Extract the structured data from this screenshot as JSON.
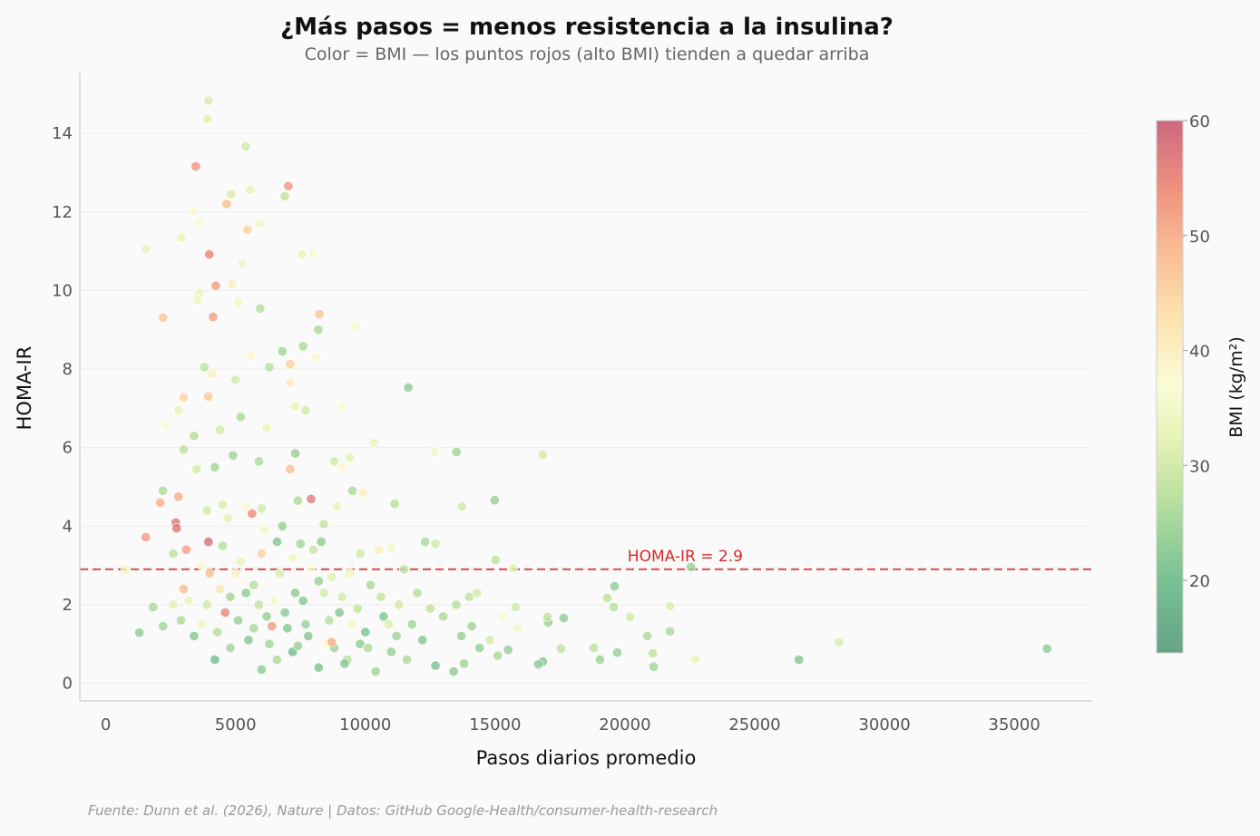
{
  "chart_data": {
    "type": "scatter",
    "title": "¿Más pasos = menos resistencia a la insulina?",
    "subtitle": "Color = BMI — los puntos rojos (alto BMI) tienden a quedar arriba",
    "xlabel": "Pasos diarios promedio",
    "ylabel": "HOMA-IR",
    "xlim": [
      -1000,
      38000
    ],
    "ylim": [
      -0.45,
      15.55
    ],
    "xticks": [
      0,
      5000,
      10000,
      15000,
      20000,
      25000,
      30000,
      35000
    ],
    "yticks": [
      0,
      2,
      4,
      6,
      8,
      10,
      12,
      14
    ],
    "grid": "horizontal",
    "threshold": {
      "value": 2.9,
      "label": "HOMA-IR = 2.9",
      "color": "#d62728"
    },
    "colorbar": {
      "label": "BMI (kg/m²)",
      "range": [
        13.7,
        60
      ],
      "ticks": [
        20,
        30,
        40,
        50,
        60
      ],
      "colormap": "RdYlGn_r",
      "stops": [
        [
          13.7,
          "#5f9f80"
        ],
        [
          20,
          "#70be8e"
        ],
        [
          27,
          "#b5de9a"
        ],
        [
          32,
          "#e3f2b0"
        ],
        [
          37,
          "#fbfcd6"
        ],
        [
          43,
          "#fde0a8"
        ],
        [
          49,
          "#f9b78c"
        ],
        [
          54,
          "#ef8c78"
        ],
        [
          60,
          "#c9617a"
        ]
      ]
    },
    "point_fields": [
      "steps",
      "homa_ir",
      "bmi"
    ],
    "points": [
      [
        3955,
        14.83,
        31
      ],
      [
        3920,
        14.37,
        32
      ],
      [
        5390,
        13.67,
        30
      ],
      [
        3465,
        13.16,
        53
      ],
      [
        7035,
        12.66,
        53
      ],
      [
        5565,
        12.56,
        33
      ],
      [
        4830,
        12.45,
        31
      ],
      [
        6895,
        12.4,
        28
      ],
      [
        3360,
        12.03,
        38
      ],
      [
        4655,
        12.2,
        48
      ],
      [
        5460,
        11.55,
        45
      ],
      [
        1540,
        11.06,
        33
      ],
      [
        3990,
        10.92,
        55
      ],
      [
        7560,
        10.92,
        33
      ],
      [
        7980,
        10.95,
        36
      ],
      [
        2905,
        11.34,
        33
      ],
      [
        5950,
        11.71,
        35
      ],
      [
        4235,
        10.12,
        52
      ],
      [
        4865,
        10.16,
        40
      ],
      [
        3605,
        11.73,
        36
      ],
      [
        2205,
        9.31,
        47
      ],
      [
        4130,
        9.33,
        52
      ],
      [
        8225,
        9.4,
        47
      ],
      [
        8190,
        9.0,
        26
      ],
      [
        9625,
        9.08,
        38
      ],
      [
        5950,
        9.54,
        27
      ],
      [
        3605,
        9.93,
        33
      ],
      [
        3535,
        9.77,
        34
      ],
      [
        5110,
        9.7,
        35
      ],
      [
        5250,
        10.69,
        34
      ],
      [
        11655,
        7.53,
        23
      ],
      [
        7910,
        4.69,
        56
      ],
      [
        2695,
        4.09,
        57
      ],
      [
        2730,
        3.95,
        57
      ],
      [
        1540,
        3.72,
        52
      ],
      [
        5635,
        4.32,
        54
      ],
      [
        3955,
        3.6,
        58
      ],
      [
        26705,
        0.6,
        22
      ],
      [
        36260,
        0.88,
        23
      ],
      [
        28245,
        1.04,
        31
      ],
      [
        22540,
        2.96,
        24
      ],
      [
        22715,
        0.62,
        33
      ],
      [
        21735,
        1.96,
        31
      ],
      [
        21735,
        1.32,
        26
      ],
      [
        20860,
        1.2,
        26
      ],
      [
        21070,
        0.76,
        28
      ],
      [
        21105,
        0.42,
        25
      ],
      [
        20195,
        1.69,
        30
      ],
      [
        19705,
        0.78,
        24
      ],
      [
        19600,
        2.47,
        23
      ],
      [
        19320,
        2.17,
        28
      ],
      [
        19565,
        1.94,
        27
      ],
      [
        18795,
        0.9,
        28
      ],
      [
        19040,
        0.6,
        24
      ],
      [
        17640,
        1.66,
        23
      ],
      [
        17045,
        1.55,
        24
      ],
      [
        17010,
        1.69,
        28
      ],
      [
        17535,
        0.88,
        28
      ],
      [
        16835,
        5.82,
        30
      ],
      [
        16835,
        0.55,
        22
      ],
      [
        16660,
        0.48,
        23
      ],
      [
        14980,
        4.66,
        24
      ],
      [
        15015,
        3.14,
        28
      ],
      [
        15680,
        2.93,
        32
      ],
      [
        15785,
        1.94,
        30
      ],
      [
        15855,
        1.39,
        35
      ],
      [
        13510,
        5.89,
        25
      ],
      [
        12670,
        5.89,
        35
      ],
      [
        13720,
        4.5,
        30
      ],
      [
        10325,
        6.12,
        33
      ],
      [
        11130,
        4.57,
        27
      ],
      [
        770,
        2.89,
        34
      ],
      [
        1295,
        1.29,
        23
      ],
      [
        2205,
        1.45,
        25
      ],
      [
        1820,
        1.94,
        26
      ],
      [
        2100,
        4.6,
        50
      ],
      [
        2200,
        4.9,
        26
      ],
      [
        3000,
        7.28,
        45
      ],
      [
        2800,
        6.95,
        33
      ],
      [
        2300,
        6.55,
        36
      ],
      [
        3800,
        8.05,
        28
      ],
      [
        4100,
        7.88,
        40
      ],
      [
        3950,
        7.3,
        47
      ],
      [
        5000,
        7.73,
        30
      ],
      [
        6300,
        8.05,
        27
      ],
      [
        5600,
        8.35,
        38
      ],
      [
        6800,
        8.45,
        25
      ],
      [
        7100,
        8.12,
        45
      ],
      [
        7600,
        8.58,
        26
      ],
      [
        8100,
        8.3,
        38
      ],
      [
        7100,
        7.65,
        40
      ],
      [
        7300,
        7.05,
        33
      ],
      [
        7700,
        6.95,
        30
      ],
      [
        9100,
        7.05,
        36
      ],
      [
        5200,
        6.78,
        26
      ],
      [
        6200,
        6.5,
        33
      ],
      [
        4400,
        6.45,
        30
      ],
      [
        3400,
        6.3,
        27
      ],
      [
        3000,
        5.95,
        28
      ],
      [
        3500,
        5.45,
        30
      ],
      [
        4200,
        5.5,
        25
      ],
      [
        4900,
        5.8,
        25
      ],
      [
        5900,
        5.65,
        26
      ],
      [
        7300,
        5.85,
        24
      ],
      [
        7100,
        5.45,
        48
      ],
      [
        8800,
        5.65,
        30
      ],
      [
        9400,
        5.75,
        32
      ],
      [
        9100,
        5.5,
        38
      ],
      [
        8900,
        4.5,
        33
      ],
      [
        9500,
        4.9,
        26
      ],
      [
        9900,
        4.85,
        40
      ],
      [
        6800,
        4.0,
        24
      ],
      [
        7400,
        4.65,
        26
      ],
      [
        8400,
        4.05,
        28
      ],
      [
        6000,
        4.45,
        30
      ],
      [
        4700,
        4.2,
        32
      ],
      [
        2600,
        3.3,
        28
      ],
      [
        3100,
        3.4,
        52
      ],
      [
        2800,
        4.75,
        50
      ],
      [
        3900,
        4.4,
        30
      ],
      [
        4500,
        3.5,
        27
      ],
      [
        5200,
        3.1,
        33
      ],
      [
        6000,
        3.3,
        45
      ],
      [
        6600,
        3.6,
        22
      ],
      [
        7500,
        3.55,
        25
      ],
      [
        8300,
        3.6,
        23
      ],
      [
        9800,
        3.3,
        30
      ],
      [
        10500,
        3.4,
        40
      ],
      [
        11000,
        3.45,
        35
      ],
      [
        12300,
        3.6,
        26
      ],
      [
        12700,
        3.55,
        30
      ],
      [
        11500,
        2.9,
        28
      ],
      [
        10200,
        2.5,
        26
      ],
      [
        9100,
        2.2,
        30
      ],
      [
        8200,
        2.6,
        24
      ],
      [
        7300,
        2.3,
        23
      ],
      [
        6500,
        2.1,
        35
      ],
      [
        5700,
        2.5,
        27
      ],
      [
        4800,
        2.2,
        25
      ],
      [
        3900,
        2.0,
        30
      ],
      [
        3000,
        2.4,
        48
      ],
      [
        2600,
        2.0,
        32
      ],
      [
        2900,
        1.6,
        26
      ],
      [
        3400,
        1.2,
        22
      ],
      [
        4200,
        0.6,
        20
      ],
      [
        4800,
        0.9,
        25
      ],
      [
        5500,
        1.1,
        22
      ],
      [
        6000,
        0.35,
        23
      ],
      [
        6600,
        0.6,
        26
      ],
      [
        7200,
        0.8,
        20
      ],
      [
        7800,
        1.2,
        22
      ],
      [
        8200,
        0.4,
        21
      ],
      [
        8800,
        0.9,
        25
      ],
      [
        9300,
        0.6,
        27
      ],
      [
        9800,
        1.0,
        23
      ],
      [
        10400,
        0.3,
        25
      ],
      [
        11000,
        0.8,
        24
      ],
      [
        11600,
        0.6,
        26
      ],
      [
        12200,
        1.1,
        22
      ],
      [
        12700,
        0.45,
        21
      ],
      [
        13400,
        0.3,
        23
      ],
      [
        13800,
        0.5,
        25
      ],
      [
        14400,
        0.9,
        24
      ],
      [
        15100,
        0.7,
        26
      ],
      [
        15500,
        0.85,
        24
      ],
      [
        14100,
        1.45,
        25
      ],
      [
        13500,
        2.0,
        27
      ],
      [
        14000,
        2.2,
        28
      ],
      [
        14300,
        2.3,
        30
      ],
      [
        12500,
        1.9,
        28
      ],
      [
        11800,
        1.5,
        25
      ],
      [
        10700,
        1.7,
        22
      ],
      [
        10000,
        1.3,
        21
      ],
      [
        9500,
        1.5,
        35
      ],
      [
        9000,
        1.8,
        22
      ],
      [
        8500,
        1.0,
        38
      ],
      [
        8700,
        1.05,
        50
      ],
      [
        7700,
        1.5,
        24
      ],
      [
        7000,
        1.4,
        22
      ],
      [
        6400,
        1.45,
        52
      ],
      [
        6200,
        1.7,
        24
      ],
      [
        5700,
        1.4,
        26
      ],
      [
        5100,
        1.6,
        24
      ],
      [
        4600,
        1.8,
        55
      ],
      [
        4300,
        1.3,
        27
      ],
      [
        3700,
        1.5,
        34
      ],
      [
        3200,
        2.1,
        33
      ],
      [
        4000,
        2.8,
        48
      ],
      [
        5400,
        2.3,
        23
      ],
      [
        6700,
        2.8,
        31
      ],
      [
        7900,
        2.9,
        36
      ],
      [
        8700,
        2.7,
        32
      ],
      [
        9400,
        2.8,
        34
      ],
      [
        10600,
        2.2,
        28
      ],
      [
        11300,
        2.0,
        30
      ],
      [
        12000,
        2.3,
        27
      ],
      [
        13000,
        1.7,
        26
      ],
      [
        13700,
        1.2,
        24
      ],
      [
        14800,
        1.1,
        30
      ],
      [
        15300,
        1.7,
        36
      ],
      [
        4500,
        4.55,
        31
      ],
      [
        5400,
        4.5,
        38
      ],
      [
        6100,
        3.9,
        35
      ],
      [
        7200,
        3.2,
        34
      ],
      [
        8000,
        3.4,
        29
      ],
      [
        5000,
        2.8,
        40
      ],
      [
        4400,
        2.4,
        42
      ],
      [
        3700,
        3.0,
        36
      ],
      [
        6300,
        1.0,
        25
      ],
      [
        7400,
        0.95,
        24
      ],
      [
        8600,
        1.6,
        27
      ],
      [
        9200,
        0.5,
        22
      ],
      [
        10100,
        0.9,
        26
      ],
      [
        11200,
        1.2,
        25
      ],
      [
        5900,
        2.0,
        28
      ],
      [
        6900,
        1.8,
        23
      ],
      [
        7600,
        2.1,
        22
      ],
      [
        8400,
        2.3,
        30
      ],
      [
        9700,
        1.9,
        28
      ],
      [
        10900,
        1.5,
        31
      ]
    ]
  },
  "footer": "Fuente: Dunn et al. (2026), Nature | Datos: GitHub Google-Health/consumer-health-research"
}
